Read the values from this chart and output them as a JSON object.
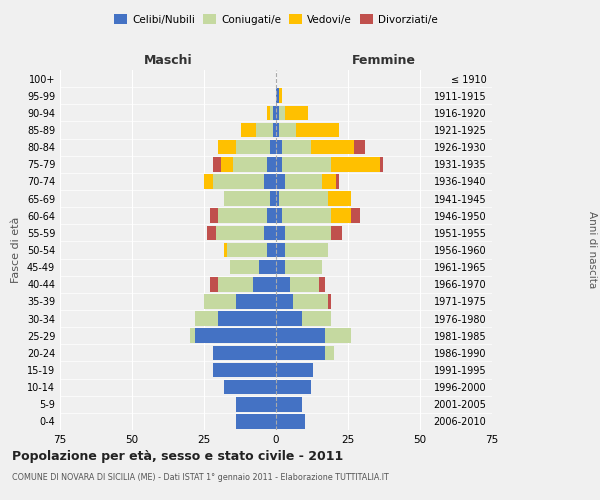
{
  "age_groups": [
    "0-4",
    "5-9",
    "10-14",
    "15-19",
    "20-24",
    "25-29",
    "30-34",
    "35-39",
    "40-44",
    "45-49",
    "50-54",
    "55-59",
    "60-64",
    "65-69",
    "70-74",
    "75-79",
    "80-84",
    "85-89",
    "90-94",
    "95-99",
    "100+"
  ],
  "birth_years": [
    "2006-2010",
    "2001-2005",
    "1996-2000",
    "1991-1995",
    "1986-1990",
    "1981-1985",
    "1976-1980",
    "1971-1975",
    "1966-1970",
    "1961-1965",
    "1956-1960",
    "1951-1955",
    "1946-1950",
    "1941-1945",
    "1936-1940",
    "1931-1935",
    "1926-1930",
    "1921-1925",
    "1916-1920",
    "1911-1915",
    "≤ 1910"
  ],
  "male": {
    "celibi": [
      14,
      14,
      18,
      22,
      22,
      28,
      20,
      14,
      8,
      6,
      3,
      4,
      3,
      2,
      4,
      3,
      2,
      1,
      1,
      0,
      0
    ],
    "coniugati": [
      0,
      0,
      0,
      0,
      0,
      2,
      8,
      11,
      12,
      10,
      14,
      17,
      17,
      16,
      18,
      12,
      12,
      6,
      1,
      0,
      0
    ],
    "vedovi": [
      0,
      0,
      0,
      0,
      0,
      0,
      0,
      0,
      0,
      0,
      1,
      0,
      0,
      0,
      3,
      4,
      6,
      5,
      1,
      0,
      0
    ],
    "divorziati": [
      0,
      0,
      0,
      0,
      0,
      0,
      0,
      0,
      3,
      0,
      0,
      3,
      3,
      0,
      0,
      3,
      0,
      0,
      0,
      0,
      0
    ]
  },
  "female": {
    "nubili": [
      10,
      9,
      12,
      13,
      17,
      17,
      9,
      6,
      5,
      3,
      3,
      3,
      2,
      1,
      3,
      2,
      2,
      1,
      1,
      1,
      0
    ],
    "coniugate": [
      0,
      0,
      0,
      0,
      3,
      9,
      10,
      12,
      10,
      13,
      15,
      16,
      17,
      17,
      13,
      17,
      10,
      6,
      2,
      0,
      0
    ],
    "vedove": [
      0,
      0,
      0,
      0,
      0,
      0,
      0,
      0,
      0,
      0,
      0,
      0,
      7,
      8,
      5,
      17,
      15,
      15,
      8,
      1,
      0
    ],
    "divorziate": [
      0,
      0,
      0,
      0,
      0,
      0,
      0,
      1,
      2,
      0,
      0,
      4,
      3,
      0,
      1,
      1,
      4,
      0,
      0,
      0,
      0
    ]
  },
  "colors": {
    "celibi": "#4472c4",
    "coniugati": "#c5d9a0",
    "vedovi": "#ffc000",
    "divorziati": "#c0504d"
  },
  "xlim": 75,
  "title": "Popolazione per età, sesso e stato civile - 2011",
  "subtitle": "COMUNE DI NOVARA DI SICILIA (ME) - Dati ISTAT 1° gennaio 2011 - Elaborazione TUTTITALIA.IT",
  "ylabel_left": "Fasce di età",
  "ylabel_right": "Anni di nascita",
  "xlabel_maschi": "Maschi",
  "xlabel_femmine": "Femmine",
  "bg_color": "#f0f0f0",
  "bar_height": 0.85
}
